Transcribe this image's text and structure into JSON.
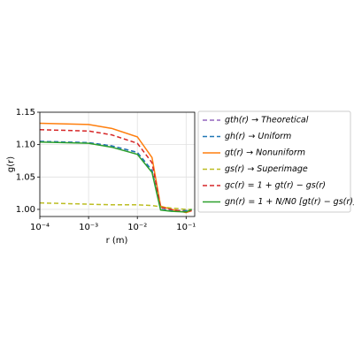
{
  "chart_data": {
    "type": "line",
    "xlabel": "r (m)",
    "ylabel": "g(r)",
    "log_x": true,
    "grid": true,
    "x": [
      0.0001,
      0.001,
      0.003,
      0.01,
      0.02,
      0.03,
      0.05,
      0.1,
      0.13
    ],
    "xlim": [
      0.0001,
      0.15
    ],
    "ylim": [
      0.989,
      1.15
    ],
    "xticks": [
      {
        "value": 0.0001,
        "label": "10⁻⁴"
      },
      {
        "value": 0.001,
        "label": "10⁻³"
      },
      {
        "value": 0.01,
        "label": "10⁻²"
      },
      {
        "value": 0.1,
        "label": "10⁻¹"
      }
    ],
    "yticks": [
      {
        "value": 1,
        "label": "1.00"
      },
      1.05,
      {
        "value": 1.1,
        "label": "1.10"
      },
      1.15
    ],
    "series": [
      {
        "name": "gth(r) → Theoretical",
        "color": "#9467bd",
        "dash": true,
        "values": [
          1.105,
          1.103,
          1.098,
          1.088,
          1.06,
          1.0,
          0.998,
          0.998,
          1.0
        ]
      },
      {
        "name": "gh(r) → Uniform",
        "color": "#1f77b4",
        "dash": true,
        "values": [
          1.105,
          1.103,
          1.098,
          1.088,
          1.06,
          1.0,
          0.998,
          0.998,
          1.0
        ]
      },
      {
        "name": "gt(r) → Nonuniform",
        "color": "#ff7f0e",
        "dash": false,
        "values": [
          1.133,
          1.131,
          1.125,
          1.112,
          1.08,
          1.005,
          1.0,
          0.995,
          0.998
        ]
      },
      {
        "name": "gs(r) → Superimage",
        "color": "#bcbd22",
        "dash": true,
        "values": [
          1.01,
          1.008,
          1.007,
          1.007,
          1.006,
          1.004,
          1.002,
          1.0,
          1.0
        ]
      },
      {
        "name": "gc(r) = 1 + gt(r) − gs(r)",
        "color": "#d62728",
        "dash": true,
        "values": [
          1.123,
          1.121,
          1.115,
          1.102,
          1.072,
          1.003,
          1.0,
          0.996,
          0.998
        ]
      },
      {
        "name": "gn(r) = 1 + N/N0 [gt(r) − gs(r)]",
        "color": "#2ca02c",
        "dash": false,
        "values": [
          1.104,
          1.102,
          1.096,
          1.085,
          1.057,
          0.999,
          0.997,
          0.996,
          1.0
        ]
      }
    ]
  }
}
